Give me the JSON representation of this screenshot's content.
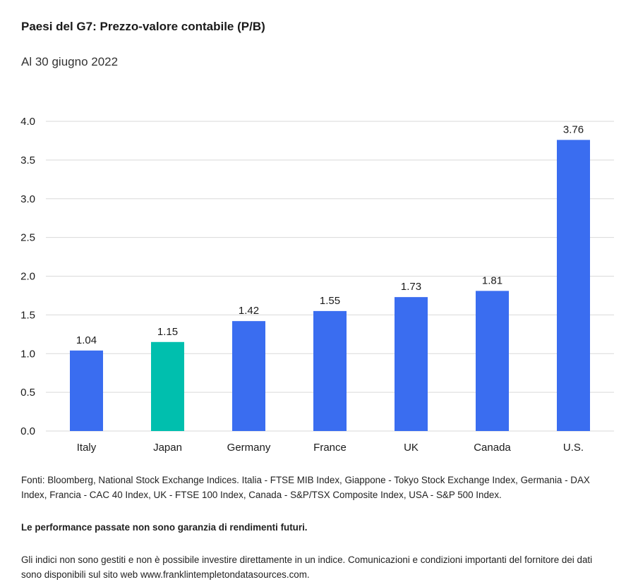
{
  "header": {
    "title": "Paesi del G7: Prezzo-valore contabile (P/B)",
    "subtitle": "Al 30 giugno 2022"
  },
  "colors": {
    "default_bar": "#3a6df0",
    "highlight_bar": "#00bfae",
    "grid": "#d9d9d9",
    "text": "#1a1a1a"
  },
  "chart_data": {
    "type": "bar",
    "title": "Paesi del G7: Prezzo-valore contabile (P/B)",
    "subtitle": "Al 30 giugno 2022",
    "categories": [
      "Italy",
      "Japan",
      "Germany",
      "France",
      "UK",
      "Canada",
      "U.S."
    ],
    "values": [
      1.04,
      1.15,
      1.42,
      1.55,
      1.73,
      1.81,
      3.76
    ],
    "value_labels": [
      "1.04",
      "1.15",
      "1.42",
      "1.55",
      "1.73",
      "1.81",
      "3.76"
    ],
    "highlight_category": "Japan",
    "xlabel": "",
    "ylabel": "",
    "ylim": [
      0,
      4
    ],
    "yticks": [
      "0.0",
      "0.5",
      "1.0",
      "1.5",
      "2.0",
      "2.5",
      "3.0",
      "3.5",
      "4.0"
    ],
    "grid": true,
    "legend": "none"
  },
  "footer": {
    "sources": "Fonti: Bloomberg, National Stock Exchange Indices. Italia - FTSE MIB Index, Giappone - Tokyo Stock Exchange Index, Germania - DAX Index, Francia - CAC 40 Index, UK - FTSE 100 Index, Canada - S&P/TSX Composite Index, USA - S&P 500 Index.",
    "disclaimer": "Le performance passate non sono garanzia di rendimenti futuri.",
    "notice": "Gli indici non sono gestiti e non è possibile investire direttamente in un indice. Comunicazioni e condizioni importanti del fornitore dei dati sono disponibili sul sito web www.franklintempletondatasources.com."
  }
}
